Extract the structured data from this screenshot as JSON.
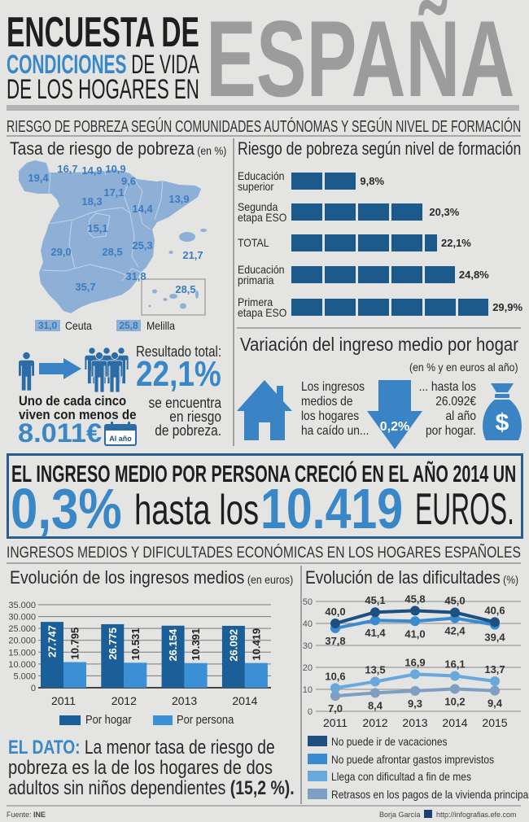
{
  "colors": {
    "background": "#e4e4e2",
    "dark_blue": "#1d5a8c",
    "accent_blue": "#3a87c8",
    "map_fill": "#8eafd6",
    "title_gray": "#9c9c9c",
    "box_border": "#2b5d8c"
  },
  "header": {
    "title_line1": "ENCUESTA DE",
    "title_line2_highlight": "CONDICIONES",
    "title_line2_rest": " DE VIDA",
    "title_line3": "DE LOS HOGARES EN",
    "title_big": "ESPAÑA",
    "section1_subtitle": "RIESGO DE POBREZA SEGÚN COMUNIDADES AUTÓNOMAS Y SEGÚN NIVEL DE FORMACIÓN"
  },
  "map": {
    "title": "Tasa de riesgo de pobreza",
    "unit": " (en %)",
    "values": [
      "19,4",
      "16,7",
      "14,9",
      "10,9",
      "9,6",
      "17,1",
      "18,3",
      "14,4",
      "13,9",
      "15,1",
      "29,0",
      "28,5",
      "25,3",
      "21,7",
      "31,8",
      "35,7",
      "28,5"
    ],
    "ceuta": {
      "value": "31,0",
      "label": "Ceuta"
    },
    "melilla": {
      "value": "25,8",
      "label": "Melilla"
    }
  },
  "formation": {
    "title": "Riesgo de pobreza según nivel de formación",
    "rows": [
      {
        "label": "Educación\nsuperior",
        "value_label": "9,8%"
      },
      {
        "label": "Segunda\netapa ESO",
        "value_label": "20,3%"
      },
      {
        "label": "TOTAL",
        "value_label": "22,1%"
      },
      {
        "label": "Educación\nprimaria",
        "value_label": "24,8%"
      },
      {
        "label": "Primera\netapa ESO",
        "value_label": "29,9%"
      }
    ]
  },
  "poverty_summary": {
    "result_label": "Resultado total:",
    "result_value": "22,1%",
    "result_desc": [
      "se encuentra",
      "en riesgo",
      "de pobreza."
    ],
    "one_in_five": [
      "Uno de cada cinco",
      "viven con menos de"
    ],
    "income_threshold": "8.011€",
    "calendar_label": "Al año"
  },
  "income_variation": {
    "title": "Variación del ingreso medio por hogar",
    "subtitle": "(en % y en euros al año)",
    "left_text": [
      "Los ingresos",
      "medios de",
      "los hogares",
      "ha caído un..."
    ],
    "change": "0,2%",
    "right_text": [
      "... hasta los",
      "26.092€",
      "al año",
      "por hogar."
    ],
    "money_symbol": "$"
  },
  "headline": {
    "line1": "EL INGRESO MEDIO POR PERSONA CRECIÓ EN EL AÑO 2014 UN",
    "pct": "0,3%",
    "mid": "hasta los",
    "amount": "10.419",
    "unit": "EUROS."
  },
  "section2": {
    "subtitle": "INGRESOS MEDIOS Y DIFICULTADES ECONÓMICAS EN LOS HOGARES ESPAÑOLES"
  },
  "income_chart": {
    "title": "Evolución de los ingresos medios",
    "unit": " (en euros)",
    "legend": [
      "Por hogar",
      "Por persona"
    ]
  },
  "difficulties_chart": {
    "title": "Evolución de las dificultades",
    "unit": " (%)",
    "legend": [
      "No puede ir de vacaciones",
      "No puede afrontar gastos imprevistos",
      "Llega con dificultad a fin de mes",
      "Retrasos en los pagos de la vivienda principal"
    ]
  },
  "el_dato": {
    "label": "EL DATO:",
    "line1": " La menor tasa de riesgo de",
    "line2": "pobreza es la de los hogares de dos",
    "line3": "adultos sin niños dependientes ",
    "highlight": "(15,2 %)."
  },
  "footer": {
    "source_label": "Fuente: ",
    "source": "INE",
    "author": "Borja García",
    "url": "http://infografias.efe.com"
  },
  "chart_data": [
    {
      "id": "formation",
      "type": "bar",
      "orientation": "horizontal",
      "title": "Riesgo de pobreza según nivel de formación",
      "categories": [
        "Educación superior",
        "Segunda etapa ESO",
        "TOTAL",
        "Educación primaria",
        "Primera etapa ESO"
      ],
      "values": [
        9.8,
        20.3,
        22.1,
        24.8,
        29.9
      ],
      "value_labels": [
        "9,8%",
        "20,3%",
        "22,1%",
        "24,8%",
        "29,9%"
      ],
      "unit": "%",
      "xlim": [
        0,
        30
      ],
      "grid": false
    },
    {
      "id": "income",
      "type": "bar",
      "title": "Evolución de los ingresos medios (en euros)",
      "xlabel": "",
      "ylabel": "",
      "categories": [
        "2011",
        "2012",
        "2013",
        "2014"
      ],
      "series": [
        {
          "name": "Por hogar",
          "values": [
            27747,
            26775,
            26154,
            26092
          ],
          "labels": [
            "27.747",
            "26.775",
            "26.154",
            "26.092"
          ],
          "color": "#1a5f97"
        },
        {
          "name": "Por persona",
          "values": [
            10795,
            10531,
            10391,
            10419
          ],
          "labels": [
            "10.795",
            "10.531",
            "10.391",
            "10.419"
          ],
          "color": "#3b8fd4"
        }
      ],
      "yticks": [
        0,
        5000,
        10000,
        15000,
        20000,
        25000,
        30000,
        35000
      ],
      "ytick_labels": [
        "0",
        "5.000",
        "10.000",
        "15.000",
        "20.000",
        "25.000",
        "30.000",
        "35.000"
      ],
      "ylim": [
        0,
        35000
      ],
      "grid": true,
      "legend_position": "bottom"
    },
    {
      "id": "difficulties",
      "type": "line",
      "title": "Evolución de las dificultades (%)",
      "x": [
        "2011",
        "2012",
        "2013",
        "2014",
        "2015"
      ],
      "series": [
        {
          "name": "No puede ir de vacaciones",
          "values": [
            40.0,
            45.1,
            45.8,
            45.0,
            40.6
          ],
          "labels": [
            "40,0",
            "45,1",
            "45,8",
            "45,0",
            "40,6"
          ],
          "color": "#1d4f80",
          "label_pos": "above"
        },
        {
          "name": "No puede afrontar gastos imprevistos",
          "values": [
            37.8,
            41.4,
            41.0,
            42.4,
            39.4
          ],
          "labels": [
            "37,8",
            "41,4",
            "41,0",
            "42,4",
            "39,4"
          ],
          "color": "#3a8ad0",
          "label_pos": "below"
        },
        {
          "name": "Llega con dificultad a fin de mes",
          "values": [
            10.6,
            13.5,
            16.9,
            16.1,
            13.7
          ],
          "labels": [
            "10,6",
            "13,5",
            "16,9",
            "16,1",
            "13,7"
          ],
          "color": "#69a8dd",
          "label_pos": "above"
        },
        {
          "name": "Retrasos en los pagos de la vivienda principal",
          "values": [
            7.0,
            8.4,
            9.3,
            10.2,
            9.4
          ],
          "labels": [
            "7,0",
            "8,4",
            "9,3",
            "10,2",
            "9,4"
          ],
          "color": "#7e9ec2",
          "label_pos": "below"
        }
      ],
      "yticks": [
        0,
        10,
        20,
        30,
        40,
        50
      ],
      "ylim": [
        0,
        50
      ],
      "grid": true,
      "legend_position": "bottom"
    },
    {
      "id": "regional_poverty_map",
      "type": "table",
      "title": "Tasa de riesgo de pobreza (en %)",
      "values": [
        19.4,
        16.7,
        14.9,
        10.9,
        9.6,
        17.1,
        18.3,
        14.4,
        13.9,
        15.1,
        29.0,
        28.5,
        25.3,
        21.7,
        31.8,
        35.7,
        28.5
      ],
      "extra": [
        {
          "label": "Ceuta",
          "value": 31.0
        },
        {
          "label": "Melilla",
          "value": 25.8
        }
      ]
    }
  ]
}
